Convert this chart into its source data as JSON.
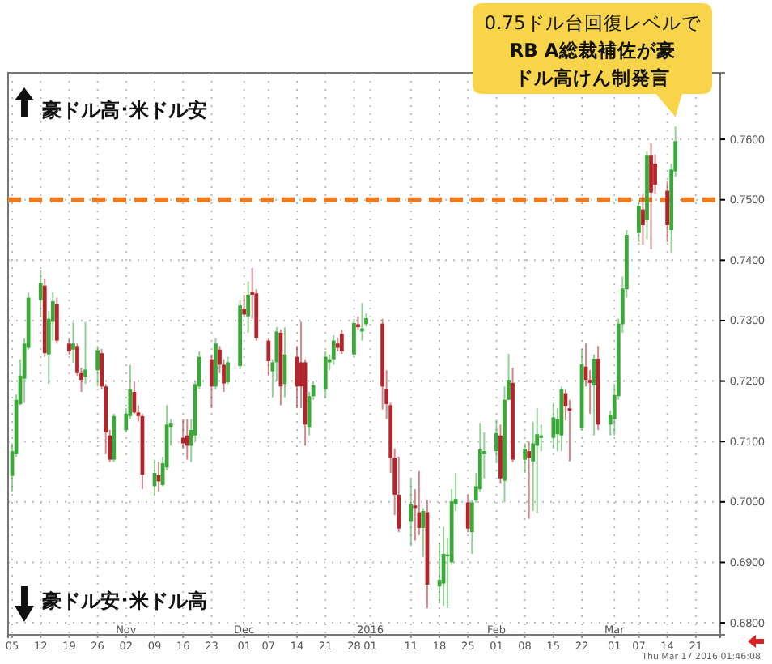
{
  "chart_data": {
    "type": "candlestick",
    "x": [
      "2015-10-05",
      "2015-10-06",
      "2015-10-07",
      "2015-10-08",
      "2015-10-09",
      "2015-10-12",
      "2015-10-13",
      "2015-10-14",
      "2015-10-15",
      "2015-10-16",
      "2015-10-19",
      "2015-10-20",
      "2015-10-21",
      "2015-10-22",
      "2015-10-23",
      "2015-10-26",
      "2015-10-27",
      "2015-10-28",
      "2015-10-29",
      "2015-10-30",
      "2015-11-02",
      "2015-11-03",
      "2015-11-04",
      "2015-11-05",
      "2015-11-06",
      "2015-11-09",
      "2015-11-10",
      "2015-11-11",
      "2015-11-12",
      "2015-11-13",
      "2015-11-16",
      "2015-11-17",
      "2015-11-18",
      "2015-11-19",
      "2015-11-20",
      "2015-11-23",
      "2015-11-24",
      "2015-11-25",
      "2015-11-26",
      "2015-11-27",
      "2015-11-30",
      "2015-12-01",
      "2015-12-02",
      "2015-12-03",
      "2015-12-04",
      "2015-12-07",
      "2015-12-08",
      "2015-12-09",
      "2015-12-10",
      "2015-12-11",
      "2015-12-14",
      "2015-12-15",
      "2015-12-16",
      "2015-12-17",
      "2015-12-18",
      "2015-12-21",
      "2015-12-22",
      "2015-12-23",
      "2015-12-24",
      "2015-12-25",
      "2015-12-28",
      "2015-12-29",
      "2015-12-30",
      "2015-12-31",
      "2016-01-04",
      "2016-01-05",
      "2016-01-06",
      "2016-01-07",
      "2016-01-08",
      "2016-01-11",
      "2016-01-12",
      "2016-01-13",
      "2016-01-14",
      "2016-01-15",
      "2016-01-18",
      "2016-01-19",
      "2016-01-20",
      "2016-01-21",
      "2016-01-22",
      "2016-01-25",
      "2016-01-26",
      "2016-01-27",
      "2016-01-28",
      "2016-01-29",
      "2016-02-01",
      "2016-02-02",
      "2016-02-03",
      "2016-02-04",
      "2016-02-05",
      "2016-02-08",
      "2016-02-09",
      "2016-02-10",
      "2016-02-11",
      "2016-02-12",
      "2016-02-15",
      "2016-02-16",
      "2016-02-17",
      "2016-02-18",
      "2016-02-19",
      "2016-02-22",
      "2016-02-23",
      "2016-02-24",
      "2016-02-25",
      "2016-02-26",
      "2016-02-29",
      "2016-03-01",
      "2016-03-02",
      "2016-03-03",
      "2016-03-04",
      "2016-03-07",
      "2016-03-08",
      "2016-03-09",
      "2016-03-10",
      "2016-03-11",
      "2016-03-14",
      "2016-03-15",
      "2016-03-16"
    ],
    "ohlc": [
      [
        0.7043,
        0.7097,
        0.7017,
        0.7084
      ],
      [
        0.7079,
        0.7178,
        0.7075,
        0.7169
      ],
      [
        0.7162,
        0.7236,
        0.716,
        0.7209
      ],
      [
        0.7204,
        0.7271,
        0.7164,
        0.7262
      ],
      [
        0.7255,
        0.7347,
        0.7252,
        0.7338
      ],
      [
        0.7334,
        0.7383,
        0.7307,
        0.7362
      ],
      [
        0.7358,
        0.737,
        0.724,
        0.7246
      ],
      [
        0.7244,
        0.7316,
        0.7195,
        0.7303
      ],
      [
        0.7298,
        0.7347,
        0.7267,
        0.7332
      ],
      [
        0.7327,
        0.7338,
        0.7262,
        0.7267
      ],
      [
        0.7262,
        0.7271,
        0.7244,
        0.7249
      ],
      [
        0.7252,
        0.7298,
        0.723,
        0.7262
      ],
      [
        0.7258,
        0.7262,
        0.7209,
        0.7213
      ],
      [
        0.7213,
        0.7222,
        0.7182,
        0.7202
      ],
      [
        0.7207,
        0.7298,
        0.7195,
        0.7219
      ],
      [
        0.7218,
        0.7258,
        0.7191,
        0.7251
      ],
      [
        0.7246,
        0.7253,
        0.7186,
        0.7191
      ],
      [
        0.7191,
        0.7195,
        0.7079,
        0.7115
      ],
      [
        0.711,
        0.7119,
        0.7066,
        0.707
      ],
      [
        0.707,
        0.7146,
        0.7066,
        0.7142
      ],
      [
        0.7119,
        0.7155,
        0.7115,
        0.7146
      ],
      [
        0.7142,
        0.7227,
        0.7137,
        0.7186
      ],
      [
        0.7182,
        0.72,
        0.7146,
        0.7148
      ],
      [
        0.7148,
        0.716,
        0.7133,
        0.7142
      ],
      [
        0.7142,
        0.7146,
        0.7021,
        0.7045
      ],
      [
        0.7026,
        0.707,
        0.7012,
        0.7048
      ],
      [
        0.7044,
        0.7066,
        0.7017,
        0.7034
      ],
      [
        0.7028,
        0.7075,
        0.7026,
        0.7064
      ],
      [
        0.7057,
        0.716,
        0.7052,
        0.7128
      ],
      [
        0.7124,
        0.7137,
        0.7093,
        0.7131
      ],
      [
        0.7106,
        0.7137,
        0.7088,
        0.7097
      ],
      [
        0.711,
        0.7137,
        0.707,
        0.7093
      ],
      [
        0.7093,
        0.7137,
        0.7066,
        0.7119
      ],
      [
        0.711,
        0.72,
        0.7101,
        0.7195
      ],
      [
        0.7191,
        0.7249,
        0.7186,
        0.724
      ],
      [
        0.7236,
        0.7244,
        0.7155,
        0.7191
      ],
      [
        0.7191,
        0.7271,
        0.7186,
        0.7262
      ],
      [
        0.7252,
        0.7258,
        0.7213,
        0.7227
      ],
      [
        0.7227,
        0.7236,
        0.7182,
        0.7196
      ],
      [
        0.7198,
        0.724,
        0.7195,
        0.7231
      ],
      [
        0.7225,
        0.7334,
        0.722,
        0.7325
      ],
      [
        0.732,
        0.7343,
        0.7307,
        0.731
      ],
      [
        0.7307,
        0.7365,
        0.728,
        0.7343
      ],
      [
        0.7347,
        0.7387,
        0.7303,
        0.7343
      ],
      [
        0.7345,
        0.7352,
        0.7267,
        0.7271
      ],
      [
        0.7267,
        0.7271,
        0.7209,
        0.7233
      ],
      [
        0.7216,
        0.7236,
        0.7173,
        0.7231
      ],
      [
        0.7231,
        0.7289,
        0.72,
        0.7282
      ],
      [
        0.728,
        0.7285,
        0.716,
        0.7191
      ],
      [
        0.7195,
        0.7289,
        0.7173,
        0.7244
      ],
      [
        0.724,
        0.7258,
        0.7155,
        0.7191
      ],
      [
        0.7231,
        0.7298,
        0.7155,
        0.7191
      ],
      [
        0.7231,
        0.7236,
        0.7093,
        0.7128
      ],
      [
        0.7124,
        0.7182,
        0.711,
        0.7175
      ],
      [
        0.7175,
        0.72,
        0.7169,
        0.7193
      ],
      [
        0.7186,
        0.7249,
        0.7173,
        0.724
      ],
      [
        0.7231,
        0.7244,
        0.7218,
        0.7236
      ],
      [
        0.7236,
        0.7276,
        0.7227,
        0.7267
      ],
      [
        0.7262,
        0.7271,
        0.7249,
        0.7255
      ],
      [
        0.7278,
        0.7285,
        0.7245,
        0.7249
      ],
      [
        0.7244,
        0.7303,
        0.724,
        0.7296
      ],
      [
        0.7294,
        0.7307,
        0.7285,
        0.7289
      ],
      [
        0.7282,
        0.7329,
        0.7267,
        0.7287
      ],
      [
        0.7294,
        0.7312,
        0.729,
        0.7304
      ],
      [
        0.7295,
        0.7303,
        0.7153,
        0.7191
      ],
      [
        0.7187,
        0.7218,
        0.7137,
        0.7162
      ],
      [
        0.716,
        0.7164,
        0.7048,
        0.7073
      ],
      [
        0.7073,
        0.7088,
        0.6978,
        0.7012
      ],
      [
        0.7012,
        0.7075,
        0.695,
        0.6956
      ],
      [
        0.6967,
        0.7039,
        0.6927,
        0.6996
      ],
      [
        0.6994,
        0.7021,
        0.6936,
        0.699
      ],
      [
        0.6983,
        0.7051,
        0.6945,
        0.6957
      ],
      [
        0.6957,
        0.699,
        0.6909,
        0.6985
      ],
      [
        0.6983,
        0.7003,
        0.6824,
        0.6863
      ],
      [
        0.686,
        0.6932,
        0.6832,
        0.6871
      ],
      [
        0.6865,
        0.6959,
        0.6828,
        0.6914
      ],
      [
        0.691,
        0.6941,
        0.6824,
        0.6913
      ],
      [
        0.69,
        0.7021,
        0.6896,
        0.7001
      ],
      [
        0.6996,
        0.7048,
        0.6985,
        0.7005
      ],
      [
        0.6999,
        0.7012,
        0.695,
        0.6956
      ],
      [
        0.695,
        0.7003,
        0.6914,
        0.6999
      ],
      [
        0.7003,
        0.7048,
        0.6999,
        0.7026
      ],
      [
        0.7021,
        0.7131,
        0.7017,
        0.7087
      ],
      [
        0.7079,
        0.7115,
        0.7039,
        0.7084
      ],
      [
        0.7084,
        0.7136,
        0.7066,
        0.7114
      ],
      [
        0.711,
        0.7128,
        0.703,
        0.7039
      ],
      [
        0.7035,
        0.7191,
        0.6999,
        0.7169
      ],
      [
        0.7169,
        0.7245,
        0.7169,
        0.7202
      ],
      [
        0.7197,
        0.7222,
        0.7066,
        0.707
      ],
      [
        0.707,
        0.7097,
        0.7048,
        0.7088
      ],
      [
        0.7084,
        0.71,
        0.6972,
        0.7073
      ],
      [
        0.7067,
        0.7133,
        0.6985,
        0.7097
      ],
      [
        0.7093,
        0.7155,
        0.6981,
        0.7112
      ],
      [
        0.7106,
        0.7128,
        0.7084,
        0.711
      ],
      [
        0.7106,
        0.7164,
        0.7088,
        0.714
      ],
      [
        0.7112,
        0.7155,
        0.7084,
        0.7137
      ],
      [
        0.711,
        0.7191,
        0.7084,
        0.7186
      ],
      [
        0.718,
        0.7186,
        0.7135,
        0.7158
      ],
      [
        0.7155,
        0.7169,
        0.7067,
        0.7151
      ],
      [
        0.7122,
        0.7253,
        0.7119,
        0.7228
      ],
      [
        0.7224,
        0.7262,
        0.7191,
        0.7202
      ],
      [
        0.7202,
        0.7218,
        0.7146,
        0.7197
      ],
      [
        0.7193,
        0.7244,
        0.711,
        0.7237
      ],
      [
        0.7237,
        0.7258,
        0.7119,
        0.7128
      ],
      [
        0.7128,
        0.7151,
        0.711,
        0.7144
      ],
      [
        0.7137,
        0.7195,
        0.711,
        0.7177
      ],
      [
        0.7175,
        0.7303,
        0.7169,
        0.7295
      ],
      [
        0.7294,
        0.7373,
        0.728,
        0.7353
      ],
      [
        0.7352,
        0.745,
        0.7338,
        0.7442
      ],
      [
        0.7445,
        0.75,
        0.743,
        0.749
      ],
      [
        0.7484,
        0.751,
        0.7425,
        0.7458
      ],
      [
        0.7466,
        0.758,
        0.7435,
        0.7573
      ],
      [
        0.7573,
        0.7594,
        0.7418,
        0.7512
      ],
      [
        0.756,
        0.7575,
        0.751,
        0.7525
      ],
      [
        0.7515,
        0.753,
        0.743,
        0.7458
      ],
      [
        0.745,
        0.756,
        0.7412,
        0.755
      ],
      [
        0.7547,
        0.7621,
        0.7538,
        0.7597
      ]
    ],
    "colors": [
      "#3aa93a",
      "#3aa93a",
      "#3aa93a",
      "#3aa93a",
      "#3aa93a",
      "#3aa93a",
      "#b5242a",
      "#3aa93a",
      "#3aa93a",
      "#b5242a",
      "#b5242a",
      "#3aa93a",
      "#b5242a",
      "#b5242a",
      "#3aa93a",
      "#3aa93a",
      "#b5242a",
      "#b5242a",
      "#b5242a",
      "#3aa93a",
      "#3aa93a",
      "#3aa93a",
      "#b5242a",
      "#b5242a",
      "#b5242a",
      "#3aa93a",
      "#b5242a",
      "#3aa93a",
      "#3aa93a",
      "#3aa93a",
      "#b5242a",
      "#b5242a",
      "#3aa93a",
      "#3aa93a",
      "#3aa93a",
      "#b5242a",
      "#3aa93a",
      "#b5242a",
      "#b5242a",
      "#3aa93a",
      "#3aa93a",
      "#b5242a",
      "#3aa93a",
      "#b5242a",
      "#b5242a",
      "#b5242a",
      "#3aa93a",
      "#3aa93a",
      "#b5242a",
      "#3aa93a",
      "#b5242a",
      "#b5242a",
      "#b5242a",
      "#3aa93a",
      "#3aa93a",
      "#3aa93a",
      "#3aa93a",
      "#3aa93a",
      "#b5242a",
      "#b5242a",
      "#3aa93a",
      "#b5242a",
      "#3aa93a",
      "#3aa93a",
      "#b5242a",
      "#b5242a",
      "#b5242a",
      "#b5242a",
      "#b5242a",
      "#3aa93a",
      "#b5242a",
      "#b5242a",
      "#3aa93a",
      "#b5242a",
      "#3aa93a",
      "#3aa93a",
      "#3aa93a",
      "#3aa93a",
      "#3aa93a",
      "#b5242a",
      "#3aa93a",
      "#3aa93a",
      "#3aa93a",
      "#3aa93a",
      "#3aa93a",
      "#b5242a",
      "#3aa93a",
      "#3aa93a",
      "#b5242a",
      "#3aa93a",
      "#b5242a",
      "#3aa93a",
      "#3aa93a",
      "#3aa93a",
      "#3aa93a",
      "#3aa93a",
      "#3aa93a",
      "#b5242a",
      "#b5242a",
      "#3aa93a",
      "#b5242a",
      "#b5242a",
      "#3aa93a",
      "#b5242a",
      "#3aa93a",
      "#3aa93a",
      "#3aa93a",
      "#3aa93a",
      "#3aa93a",
      "#3aa93a",
      "#b5242a",
      "#3aa93a",
      "#b5242a",
      "#b5242a",
      "#b5242a",
      "#3aa93a",
      "#3aa93a"
    ],
    "xlim": [
      "2015-10-04",
      "2016-03-27"
    ],
    "xticks": [
      {
        "value": "2015-10-05",
        "label": "05"
      },
      {
        "value": "2015-10-12",
        "label": "12"
      },
      {
        "value": "2015-10-19",
        "label": "19"
      },
      {
        "value": "2015-10-26",
        "label": "26"
      },
      {
        "value": "2015-11-02",
        "label": "Nov\n02"
      },
      {
        "value": "2015-11-09",
        "label": "09"
      },
      {
        "value": "2015-11-16",
        "label": "16"
      },
      {
        "value": "2015-11-23",
        "label": "23"
      },
      {
        "value": "2015-12-01",
        "label": "Dec\n01"
      },
      {
        "value": "2015-12-07",
        "label": "07"
      },
      {
        "value": "2015-12-14",
        "label": "14"
      },
      {
        "value": "2015-12-21",
        "label": "21"
      },
      {
        "value": "2015-12-28",
        "label": "28"
      },
      {
        "value": "2016-01-01",
        "label": "2016\n01"
      },
      {
        "value": "2016-01-11",
        "label": "11"
      },
      {
        "value": "2016-01-18",
        "label": "18"
      },
      {
        "value": "2016-01-25",
        "label": "25"
      },
      {
        "value": "2016-02-01",
        "label": "Feb\n01"
      },
      {
        "value": "2016-02-08",
        "label": "08"
      },
      {
        "value": "2016-02-15",
        "label": "15"
      },
      {
        "value": "2016-02-22",
        "label": "22"
      },
      {
        "value": "2016-03-01",
        "label": "Mar\n01"
      },
      {
        "value": "2016-03-07",
        "label": "07"
      },
      {
        "value": "2016-03-14",
        "label": "14"
      },
      {
        "value": "2016-03-21",
        "label": "21"
      }
    ],
    "ylim": [
      0.678,
      0.771
    ],
    "yticks": [
      {
        "value": 0.68,
        "label": "0.6800"
      },
      {
        "value": 0.69,
        "label": "0.6900"
      },
      {
        "value": 0.7,
        "label": "0.7000"
      },
      {
        "value": 0.71,
        "label": "0.7100"
      },
      {
        "value": 0.72,
        "label": "0.7200"
      },
      {
        "value": 0.73,
        "label": "0.7300"
      },
      {
        "value": 0.74,
        "label": "0.7400"
      },
      {
        "value": 0.75,
        "label": "0.7500"
      },
      {
        "value": 0.76,
        "label": "0.7600"
      }
    ],
    "grid": true,
    "ref_lines": [
      {
        "axis": "y",
        "value": 0.75,
        "color": "#f07a1e",
        "line_style": "dashed"
      }
    ],
    "annotations": [
      "0.75ドル台回復レベルで",
      "RB A総裁補佐が豪ドル高けん制発言",
      "豪ドル高･米ドル安",
      "豪ドル安･米ドル高",
      "Thu Mar 17 2016 01:46:08"
    ]
  }
}
